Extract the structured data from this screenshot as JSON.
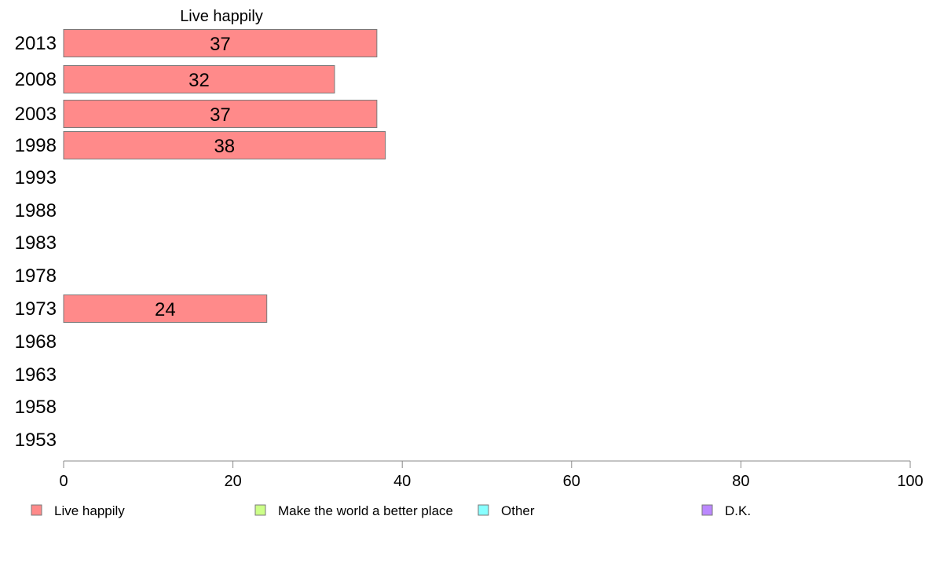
{
  "chart_data": {
    "type": "bar",
    "orientation": "horizontal",
    "title": "Live happily",
    "categories": [
      "2013",
      "2008",
      "2003",
      "1998",
      "1993",
      "1988",
      "1983",
      "1978",
      "1973",
      "1968",
      "1963",
      "1958",
      "1953"
    ],
    "series": [
      {
        "name": "Live happily",
        "values": [
          37,
          32,
          37,
          38,
          null,
          null,
          null,
          null,
          24,
          null,
          null,
          null,
          null
        ],
        "color": "#ff8a8a"
      },
      {
        "name": "Make the world a better place",
        "values": [
          null,
          null,
          null,
          null,
          null,
          null,
          null,
          null,
          null,
          null,
          null,
          null,
          null
        ],
        "color": "#ccff88"
      },
      {
        "name": "Other",
        "values": [
          null,
          null,
          null,
          null,
          null,
          null,
          null,
          null,
          null,
          null,
          null,
          null,
          null
        ],
        "color": "#88ffff"
      },
      {
        "name": "D.K.",
        "values": [
          null,
          null,
          null,
          null,
          null,
          null,
          null,
          null,
          null,
          null,
          null,
          null,
          null
        ],
        "color": "#bb88ff"
      }
    ],
    "data_labels": [
      "37",
      "32",
      "37",
      "38",
      "",
      "",
      "",
      "",
      "24",
      "",
      "",
      "",
      ""
    ],
    "xlim": [
      0,
      100
    ],
    "xticks": [
      "0",
      "20",
      "40",
      "60",
      "80",
      "100"
    ],
    "grid": false,
    "legend_position": "bottom"
  }
}
